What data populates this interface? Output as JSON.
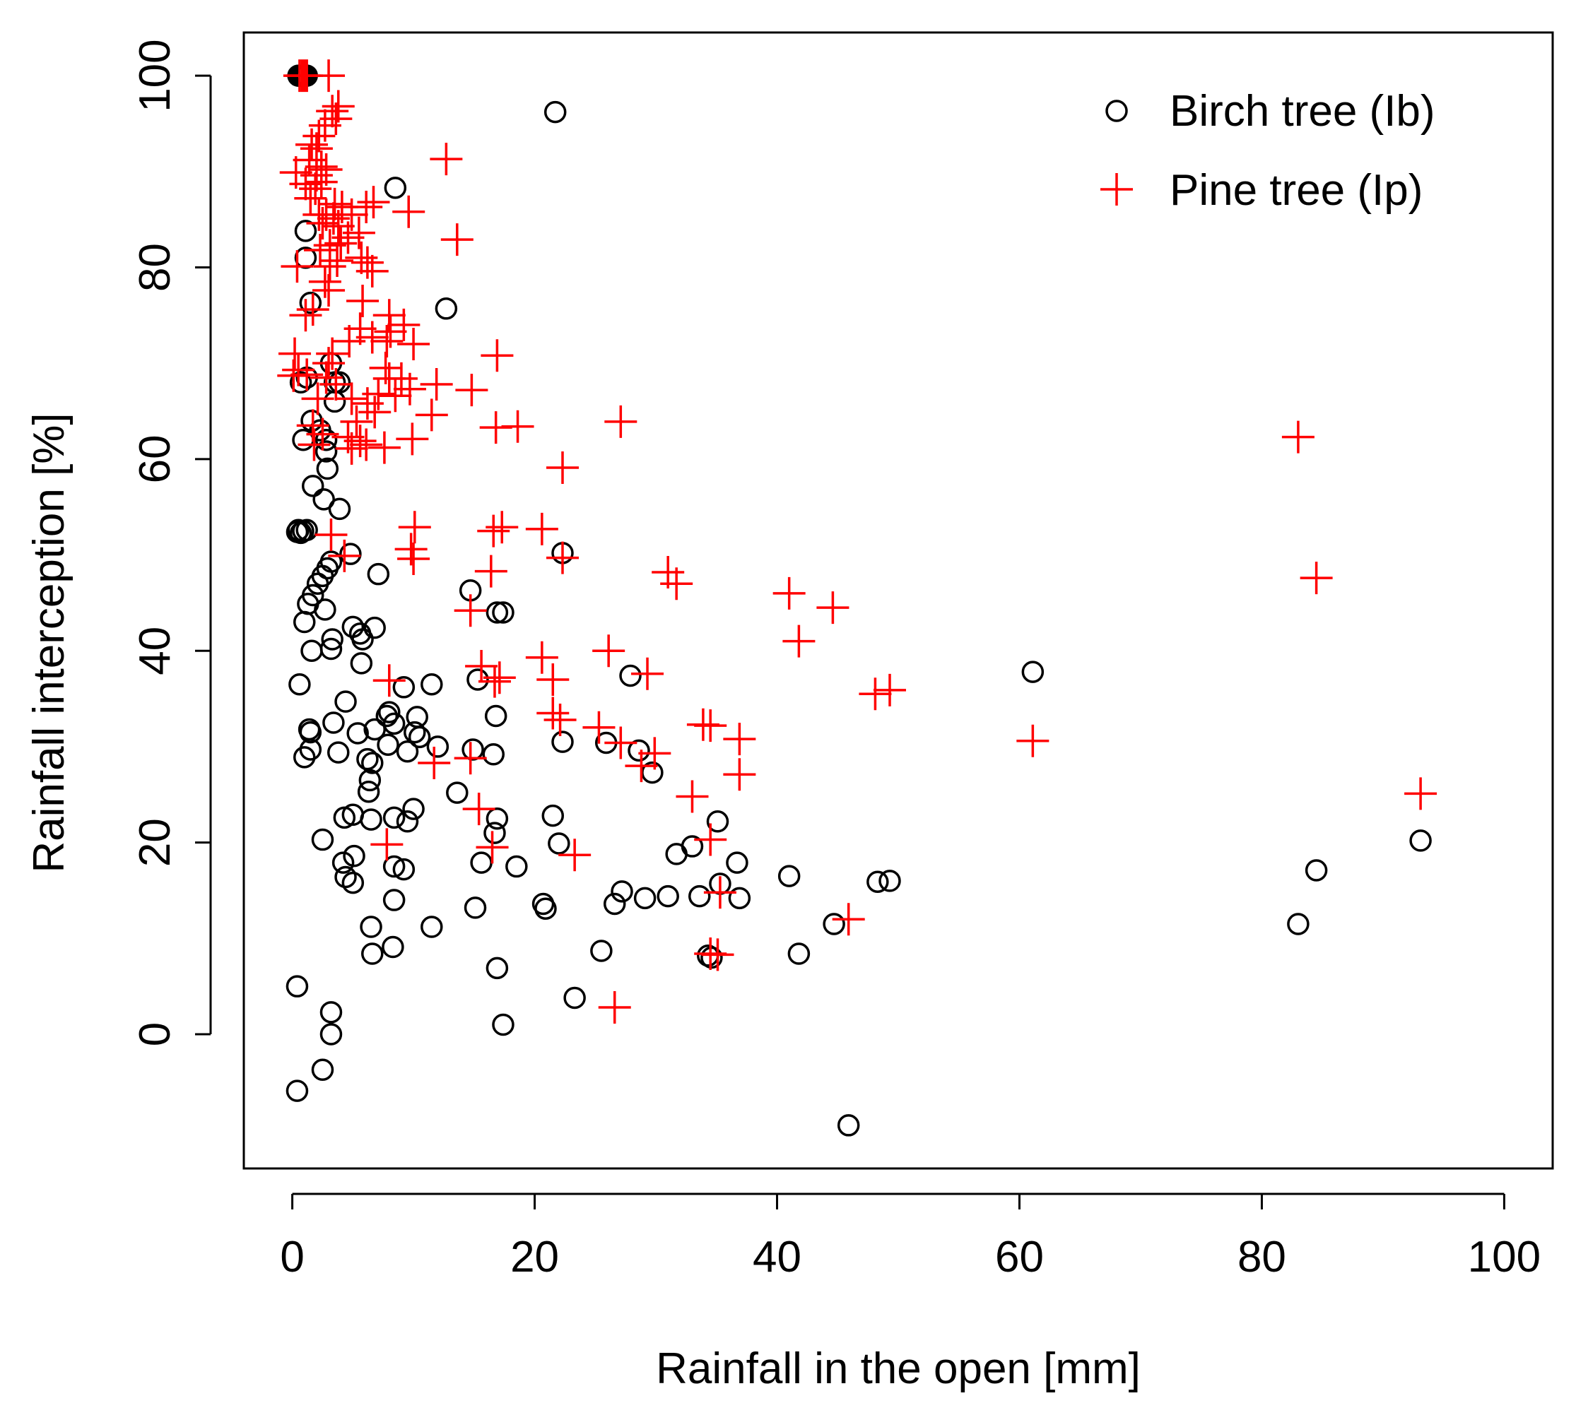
{
  "chart_data": {
    "type": "scatter",
    "title": "",
    "xlabel": "Rainfall in the open [mm]",
    "ylabel": "Rainfall interception [%]",
    "xlim": [
      -4,
      104
    ],
    "ylim": [
      -14,
      104.5
    ],
    "xticks": [
      0,
      20,
      40,
      60,
      80,
      100
    ],
    "yticks": [
      0,
      20,
      40,
      60,
      80,
      100
    ],
    "grid": false,
    "legend_position": "top-right",
    "series": [
      {
        "name": "Birch tree (Ib)",
        "marker": "circle",
        "color": "#000000",
        "points": [
          [
            0.5,
            100
          ],
          [
            0.6,
            100
          ],
          [
            0.7,
            100
          ],
          [
            0.8,
            100
          ],
          [
            0.9,
            100
          ],
          [
            1.0,
            100
          ],
          [
            1.1,
            100
          ],
          [
            1.2,
            100
          ],
          [
            21.7,
            96.2
          ],
          [
            8.5,
            88.3
          ],
          [
            1.1,
            83.8
          ],
          [
            1.1,
            81
          ],
          [
            12.7,
            75.7
          ],
          [
            1.5,
            76.3
          ],
          [
            0.7,
            68
          ],
          [
            1.2,
            68.5
          ],
          [
            3.2,
            70
          ],
          [
            3.5,
            68
          ],
          [
            3.9,
            68
          ],
          [
            3.5,
            66
          ],
          [
            0.9,
            62
          ],
          [
            1.6,
            64
          ],
          [
            2.3,
            63
          ],
          [
            2.8,
            62
          ],
          [
            2.8,
            60.8
          ],
          [
            2.9,
            59
          ],
          [
            1.7,
            57.2
          ],
          [
            2.6,
            55.8
          ],
          [
            3.9,
            54.8
          ],
          [
            0.4,
            52.4
          ],
          [
            0.5,
            52.6
          ],
          [
            0.7,
            52.3
          ],
          [
            0.9,
            52.5
          ],
          [
            1.2,
            52.6
          ],
          [
            22.3,
            50.2
          ],
          [
            4.8,
            50.1
          ],
          [
            7.1,
            48
          ],
          [
            3.2,
            49.3
          ],
          [
            2.9,
            48.6
          ],
          [
            2.5,
            47.8
          ],
          [
            2.1,
            47
          ],
          [
            1.7,
            45.8
          ],
          [
            1.3,
            44.9
          ],
          [
            14.7,
            46.3
          ],
          [
            16.9,
            44
          ],
          [
            17.4,
            44
          ],
          [
            2.7,
            44.3
          ],
          [
            1.0,
            43
          ],
          [
            5.0,
            42.5
          ],
          [
            6.8,
            42.4
          ],
          [
            5.6,
            41.8
          ],
          [
            5.8,
            41.2
          ],
          [
            3.3,
            41.2
          ],
          [
            3.2,
            40.2
          ],
          [
            1.6,
            40
          ],
          [
            27.9,
            37.4
          ],
          [
            61.1,
            37.8
          ],
          [
            5.7,
            38.7
          ],
          [
            15.3,
            37
          ],
          [
            11.5,
            36.5
          ],
          [
            9.2,
            36.2
          ],
          [
            0.6,
            36.5
          ],
          [
            4.4,
            34.7
          ],
          [
            8.0,
            33.6
          ],
          [
            16.8,
            33.2
          ],
          [
            7.8,
            33.2
          ],
          [
            8.4,
            32.4
          ],
          [
            10.3,
            33.1
          ],
          [
            3.4,
            32.5
          ],
          [
            1.4,
            31.8
          ],
          [
            1.5,
            31.5
          ],
          [
            6.8,
            31.8
          ],
          [
            5.4,
            31.4
          ],
          [
            10.1,
            31.5
          ],
          [
            10.5,
            31
          ],
          [
            22.3,
            30.5
          ],
          [
            25.9,
            30.4
          ],
          [
            28.6,
            29.6
          ],
          [
            29.7,
            27.3
          ],
          [
            12.0,
            30
          ],
          [
            7.9,
            30.2
          ],
          [
            3.8,
            29.4
          ],
          [
            1.5,
            29.7
          ],
          [
            1.0,
            28.9
          ],
          [
            9.5,
            29.5
          ],
          [
            14.9,
            29.7
          ],
          [
            16.6,
            29.2
          ],
          [
            6.2,
            28.7
          ],
          [
            6.6,
            28.3
          ],
          [
            6.4,
            26.5
          ],
          [
            6.3,
            25.3
          ],
          [
            13.6,
            25.2
          ],
          [
            10.0,
            23.5
          ],
          [
            4.3,
            22.6
          ],
          [
            5.0,
            22.9
          ],
          [
            8.4,
            22.6
          ],
          [
            9.5,
            22.2
          ],
          [
            6.5,
            22.4
          ],
          [
            16.9,
            22.5
          ],
          [
            21.5,
            22.8
          ],
          [
            35.1,
            22.2
          ],
          [
            16.7,
            21
          ],
          [
            2.5,
            20.3
          ],
          [
            22.0,
            19.9
          ],
          [
            33.0,
            19.6
          ],
          [
            31.7,
            18.8
          ],
          [
            36.7,
            17.9
          ],
          [
            8.4,
            17.5
          ],
          [
            9.2,
            17.2
          ],
          [
            4.2,
            17.9
          ],
          [
            5.1,
            18.6
          ],
          [
            15.6,
            17.9
          ],
          [
            18.5,
            17.5
          ],
          [
            4.4,
            16.4
          ],
          [
            5.0,
            15.8
          ],
          [
            41.0,
            16.5
          ],
          [
            48.3,
            15.9
          ],
          [
            49.3,
            16
          ],
          [
            84.5,
            17.1
          ],
          [
            93.1,
            20.2
          ],
          [
            27.2,
            14.9
          ],
          [
            26.6,
            13.6
          ],
          [
            29.1,
            14.2
          ],
          [
            31.0,
            14.4
          ],
          [
            33.6,
            14.4
          ],
          [
            35.3,
            15.7
          ],
          [
            36.9,
            14.2
          ],
          [
            20.7,
            13.6
          ],
          [
            20.9,
            13.1
          ],
          [
            15.1,
            13.2
          ],
          [
            8.4,
            14.0
          ],
          [
            44.7,
            11.5
          ],
          [
            83.0,
            11.5
          ],
          [
            6.5,
            11.2
          ],
          [
            11.5,
            11.2
          ],
          [
            8.3,
            9.1
          ],
          [
            6.6,
            8.4
          ],
          [
            25.5,
            8.7
          ],
          [
            34.3,
            8.2
          ],
          [
            34.6,
            8.0
          ],
          [
            41.8,
            8.4
          ],
          [
            16.9,
            6.9
          ],
          [
            0.4,
            5
          ],
          [
            23.3,
            3.8
          ],
          [
            3.2,
            2.3
          ],
          [
            17.4,
            1.0
          ],
          [
            3.2,
            0
          ],
          [
            2.5,
            -3.7
          ],
          [
            0.4,
            -5.9
          ],
          [
            45.9,
            -9.5
          ]
        ]
      },
      {
        "name": "Pine tree (Ip)",
        "marker": "plus",
        "color": "#ff0000",
        "points": [
          [
            0.6,
            100
          ],
          [
            0.8,
            100
          ],
          [
            1.0,
            100
          ],
          [
            1.2,
            100
          ],
          [
            3.0,
            100
          ],
          [
            3.3,
            96.3
          ],
          [
            3.6,
            95.5
          ],
          [
            3.8,
            96.8
          ],
          [
            2.7,
            94.8
          ],
          [
            2.2,
            93.7
          ],
          [
            1.6,
            92.8
          ],
          [
            2.0,
            92.4
          ],
          [
            1.4,
            91.2
          ],
          [
            2.4,
            90.5
          ],
          [
            2.8,
            90.2
          ],
          [
            2.0,
            89.6
          ],
          [
            0.3,
            89.9
          ],
          [
            1.1,
            88.7
          ],
          [
            1.9,
            88.2
          ],
          [
            2.4,
            88.9
          ],
          [
            1.5,
            87.2
          ],
          [
            12.7,
            91.3
          ],
          [
            3.5,
            86.6
          ],
          [
            4.1,
            86.3
          ],
          [
            2.2,
            85.5
          ],
          [
            2.8,
            85.5
          ],
          [
            3.4,
            85.1
          ],
          [
            4.9,
            85.5
          ],
          [
            6.1,
            86.3
          ],
          [
            6.7,
            86.8
          ],
          [
            9.6,
            85.8
          ],
          [
            3.8,
            84.3
          ],
          [
            2.5,
            84.6
          ],
          [
            4.6,
            83.1
          ],
          [
            5.5,
            83.6
          ],
          [
            13.6,
            82.9
          ],
          [
            3.1,
            82.3
          ],
          [
            4.0,
            82.5
          ],
          [
            2.3,
            81.8
          ],
          [
            0.4,
            80.1
          ],
          [
            3.1,
            80.1
          ],
          [
            5.7,
            81
          ],
          [
            6.2,
            80.5
          ],
          [
            3.7,
            80.7
          ],
          [
            6.6,
            79.6
          ],
          [
            2.7,
            78.5
          ],
          [
            3.0,
            77.6
          ],
          [
            5.8,
            76.5
          ],
          [
            1.7,
            75.6
          ],
          [
            1.1,
            75
          ],
          [
            8.0,
            75
          ],
          [
            9.2,
            74
          ],
          [
            5.6,
            73.6
          ],
          [
            8.1,
            73.3
          ],
          [
            6.6,
            72.7
          ],
          [
            7.8,
            72.3
          ],
          [
            10.0,
            72
          ],
          [
            4.7,
            72.3
          ],
          [
            3.3,
            71
          ],
          [
            3.0,
            70
          ],
          [
            0.2,
            71
          ],
          [
            0.5,
            69.3
          ],
          [
            0.1,
            68.7
          ],
          [
            16.9,
            70.8
          ],
          [
            1.2,
            68.8
          ],
          [
            2.8,
            68.5
          ],
          [
            3.6,
            67.8
          ],
          [
            7.7,
            69.5
          ],
          [
            8.0,
            68.4
          ],
          [
            9.0,
            68.4
          ],
          [
            11.9,
            67.8
          ],
          [
            14.8,
            67.2
          ],
          [
            9.7,
            67.3
          ],
          [
            7.1,
            66.8
          ],
          [
            8.5,
            66.6
          ],
          [
            4.9,
            66.3
          ],
          [
            6.2,
            65.8
          ],
          [
            2.1,
            66.3
          ],
          [
            6.8,
            64.9
          ],
          [
            11.5,
            64.6
          ],
          [
            5.3,
            63.9
          ],
          [
            27.1,
            63.9
          ],
          [
            16.8,
            63.3
          ],
          [
            18.6,
            63.4
          ],
          [
            1.7,
            63.5
          ],
          [
            2.5,
            62.6
          ],
          [
            4.6,
            62.3
          ],
          [
            5.6,
            61.9
          ],
          [
            6.1,
            61.5
          ],
          [
            9.9,
            62.1
          ],
          [
            1.8,
            61.5
          ],
          [
            4.9,
            61.1
          ],
          [
            7.6,
            61.2
          ],
          [
            83.0,
            62.3
          ],
          [
            22.3,
            59.1
          ],
          [
            3.2,
            52.1
          ],
          [
            10.1,
            52.9
          ],
          [
            20.6,
            52.7
          ],
          [
            16.6,
            52.5
          ],
          [
            17.3,
            52.9
          ],
          [
            9.8,
            50.6
          ],
          [
            10.0,
            49.6
          ],
          [
            4.3,
            49.9
          ],
          [
            22.3,
            49.7
          ],
          [
            31.0,
            48.2
          ],
          [
            31.7,
            47
          ],
          [
            16.4,
            48.3
          ],
          [
            84.5,
            47.6
          ],
          [
            14.7,
            44.2
          ],
          [
            41.0,
            46
          ],
          [
            44.6,
            44.5
          ],
          [
            41.8,
            41
          ],
          [
            20.6,
            39.3
          ],
          [
            26.1,
            40
          ],
          [
            15.6,
            38.4
          ],
          [
            16.7,
            36.8
          ],
          [
            17.1,
            37.2
          ],
          [
            21.5,
            37
          ],
          [
            29.3,
            37.6
          ],
          [
            8.0,
            36.9
          ],
          [
            48.1,
            35.5
          ],
          [
            49.3,
            35.9
          ],
          [
            21.5,
            33.5
          ],
          [
            22.1,
            32.8
          ],
          [
            25.3,
            32
          ],
          [
            33.9,
            32.3
          ],
          [
            34.5,
            32.2
          ],
          [
            27.1,
            30.4
          ],
          [
            36.9,
            30.8
          ],
          [
            61.1,
            30.6
          ],
          [
            29.9,
            29.3
          ],
          [
            28.8,
            28
          ],
          [
            14.7,
            28.8
          ],
          [
            11.7,
            28.3
          ],
          [
            33.0,
            24.8
          ],
          [
            36.9,
            27.1
          ],
          [
            15.4,
            23.5
          ],
          [
            93.1,
            25.1
          ],
          [
            34.5,
            20.3
          ],
          [
            7.8,
            19.8
          ],
          [
            16.5,
            19.5
          ],
          [
            23.3,
            18.7
          ],
          [
            35.3,
            14.8
          ],
          [
            45.9,
            12
          ],
          [
            34.5,
            8.4
          ],
          [
            35.1,
            8.3
          ],
          [
            26.6,
            2.8
          ]
        ]
      }
    ]
  }
}
